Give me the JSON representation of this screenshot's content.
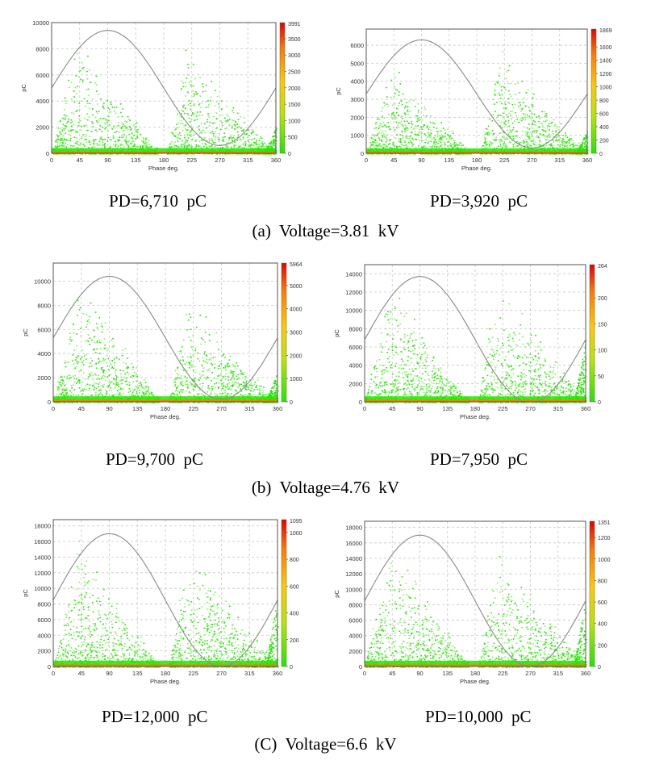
{
  "colors": {
    "cloud": "#22e600",
    "cloud_light": "#7cf25c",
    "baseline": "#ff7a00",
    "sine": "#8a8a8a",
    "grid": "#c8c8c8",
    "border": "#555555"
  },
  "chart_data": [
    {
      "id": "a1",
      "type": "scatter",
      "xlabel": "Phase deg.",
      "ylabel": "pC",
      "x_ticks": [
        0,
        45,
        90,
        135,
        180,
        225,
        270,
        315,
        360
      ],
      "y_ticks": [
        0,
        2000,
        4000,
        6000,
        8000,
        10000
      ],
      "xlim": [
        0,
        360
      ],
      "ylim": [
        0,
        10000
      ],
      "peaks": [
        9500,
        8500
      ],
      "sine_amplitude": 9400,
      "sine_offset": 5000,
      "bottom_spike": 2000,
      "colorbar_ticks": [
        0,
        500,
        1000,
        1500,
        2000,
        2500,
        3000,
        3500
      ],
      "colorbar_max": 3991,
      "colorbar_max_label": "3991"
    },
    {
      "id": "a2",
      "type": "scatter",
      "xlabel": "Phase deg.",
      "ylabel": "pC",
      "x_ticks": [
        0,
        45,
        90,
        135,
        180,
        225,
        270,
        315,
        360
      ],
      "y_ticks": [
        0,
        1000,
        2000,
        3000,
        4000,
        5000,
        6000
      ],
      "xlim": [
        0,
        360
      ],
      "ylim": [
        0,
        6900
      ],
      "peaks": [
        5500,
        6000
      ],
      "sine_amplitude": 6300,
      "sine_offset": 3300,
      "bottom_spike": 1300,
      "colorbar_ticks": [
        0,
        200,
        400,
        600,
        800,
        1000,
        1200,
        1400,
        1600
      ],
      "colorbar_max": 1869,
      "colorbar_max_label": "1869"
    },
    {
      "id": "b1",
      "type": "scatter",
      "xlabel": "Phase deg.",
      "ylabel": "pC",
      "x_ticks": [
        0,
        45,
        90,
        135,
        180,
        225,
        270,
        315,
        360
      ],
      "y_ticks": [
        0,
        2000,
        4000,
        6000,
        8000,
        10000
      ],
      "xlim": [
        0,
        360
      ],
      "ylim": [
        0,
        11500
      ],
      "peaks": [
        11000,
        9000
      ],
      "sine_amplitude": 10400,
      "sine_offset": 5300,
      "bottom_spike": 2500,
      "colorbar_ticks": [
        0,
        1000,
        2000,
        3000,
        4000,
        5000
      ],
      "colorbar_max": 5964,
      "colorbar_max_label": "5964"
    },
    {
      "id": "b2",
      "type": "scatter",
      "xlabel": "Phase deg.",
      "ylabel": "pC",
      "x_ticks": [
        0,
        45,
        90,
        135,
        180,
        225,
        270,
        315,
        360
      ],
      "y_ticks": [
        0,
        2000,
        4000,
        6000,
        8000,
        10000,
        12000,
        14000
      ],
      "xlim": [
        0,
        360
      ],
      "ylim": [
        0,
        15000
      ],
      "peaks": [
        13500,
        14000
      ],
      "sine_amplitude": 13700,
      "sine_offset": 6800,
      "bottom_spike": 7000,
      "colorbar_ticks": [
        0,
        50,
        100,
        150,
        200
      ],
      "colorbar_max": 264,
      "colorbar_max_label": "264"
    },
    {
      "id": "c1",
      "type": "scatter",
      "xlabel": "Phase deg.",
      "ylabel": "pC",
      "x_ticks": [
        0,
        45,
        90,
        135,
        180,
        225,
        270,
        315,
        360
      ],
      "y_ticks": [
        0,
        2000,
        4000,
        6000,
        8000,
        10000,
        12000,
        14000,
        16000,
        18000
      ],
      "xlim": [
        0,
        360
      ],
      "ylim": [
        0,
        18800
      ],
      "peaks": [
        17000,
        16000
      ],
      "sine_amplitude": 17000,
      "sine_offset": 8500,
      "bottom_spike": 9000,
      "colorbar_ticks": [
        0,
        200,
        400,
        600,
        800,
        1000
      ],
      "colorbar_max": 1095,
      "colorbar_max_label": "1095"
    },
    {
      "id": "c2",
      "type": "scatter",
      "xlabel": "Phase deg.",
      "ylabel": "pC",
      "x_ticks": [
        0,
        45,
        90,
        135,
        180,
        225,
        270,
        315,
        360
      ],
      "y_ticks": [
        0,
        2000,
        4000,
        6000,
        8000,
        10000,
        12000,
        14000,
        16000,
        18000
      ],
      "xlim": [
        0,
        360
      ],
      "ylim": [
        0,
        18800
      ],
      "peaks": [
        17000,
        16000
      ],
      "sine_amplitude": 17000,
      "sine_offset": 8500,
      "bottom_spike": 9000,
      "colorbar_ticks": [
        0,
        200,
        400,
        600,
        800,
        1000,
        1200
      ],
      "colorbar_max": 1351,
      "colorbar_max_label": "1351"
    }
  ],
  "pd_labels": {
    "a1": "PD=6,710  pC",
    "a2": "PD=3,920  pC",
    "b1": "PD=9,700  pC",
    "b2": "PD=7,950  pC",
    "c1": "PD=12,000  pC",
    "c2": "PD=10,000  pC"
  },
  "captions": {
    "a": "(a)  Voltage=3.81  kV",
    "b": "(b)  Voltage=4.76  kV",
    "c": "(C)  Voltage=6.6  kV"
  }
}
